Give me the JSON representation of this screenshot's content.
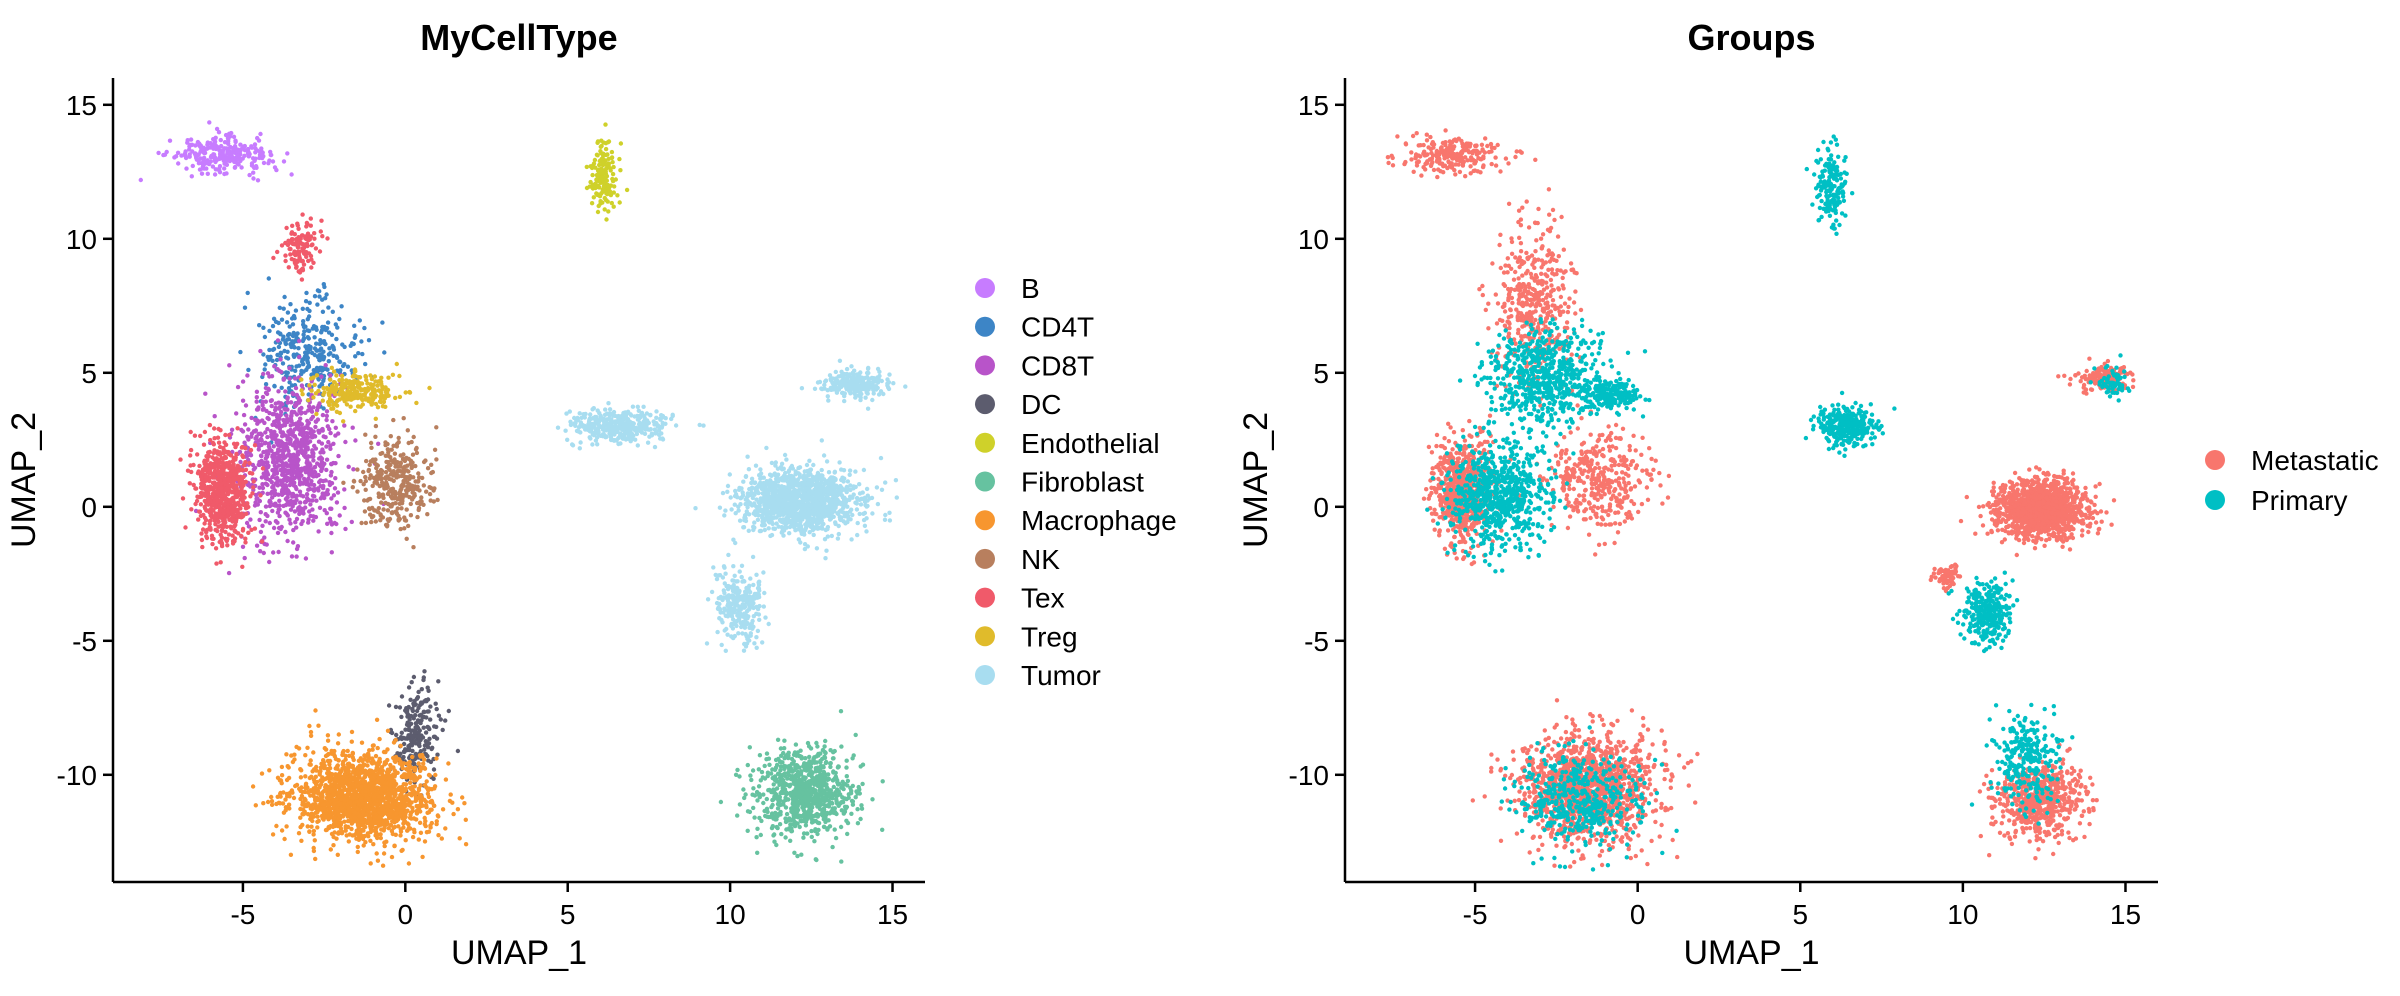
{
  "chart_data": [
    {
      "type": "scatter",
      "title": "MyCellType",
      "xlabel": "UMAP_1",
      "ylabel": "UMAP_2",
      "xlim": [
        -9,
        16
      ],
      "ylim": [
        -14,
        16
      ],
      "xticks": [
        -5,
        0,
        5,
        10,
        15
      ],
      "yticks": [
        -10,
        -5,
        0,
        5,
        10,
        15
      ],
      "xtick_labels": [
        "-5",
        "0",
        "5",
        "10",
        "15"
      ],
      "ytick_labels": [
        "-10",
        "-5",
        "0",
        "5",
        "10",
        "15"
      ],
      "grid": false,
      "legend_position": "right",
      "series": [
        {
          "name": "B",
          "color": "#C77CFF",
          "clusters": [
            {
              "cx": -5.7,
              "cy": 13.1,
              "sx": 1.0,
              "sy": 0.45,
              "n": 260
            }
          ]
        },
        {
          "name": "CD4T",
          "color": "#3D85C6",
          "clusters": [
            {
              "cx": -3.0,
              "cy": 5.8,
              "sx": 1.0,
              "sy": 1.3,
              "n": 320
            }
          ]
        },
        {
          "name": "CD8T",
          "color": "#B854C9",
          "clusters": [
            {
              "cx": -3.6,
              "cy": 1.8,
              "sx": 1.1,
              "sy": 2.0,
              "n": 900
            }
          ]
        },
        {
          "name": "DC",
          "color": "#5C5C6E",
          "clusters": [
            {
              "cx": 0.3,
              "cy": -8.6,
              "sx": 0.45,
              "sy": 1.3,
              "n": 220
            }
          ]
        },
        {
          "name": "Endothelial",
          "color": "#CFD12A",
          "clusters": [
            {
              "cx": 6.1,
              "cy": 12.4,
              "sx": 0.3,
              "sy": 0.85,
              "n": 160
            }
          ]
        },
        {
          "name": "Fibroblast",
          "color": "#66C2A0",
          "clusters": [
            {
              "cx": 12.3,
              "cy": -10.7,
              "sx": 1.0,
              "sy": 1.1,
              "n": 800
            }
          ]
        },
        {
          "name": "Macrophage",
          "color": "#F7962F",
          "clusters": [
            {
              "cx": -1.3,
              "cy": -10.8,
              "sx": 1.4,
              "sy": 1.1,
              "n": 1700
            }
          ]
        },
        {
          "name": "NK",
          "color": "#B87F5E",
          "clusters": [
            {
              "cx": -0.3,
              "cy": 0.8,
              "sx": 0.7,
              "sy": 1.2,
              "n": 320
            }
          ]
        },
        {
          "name": "Tex",
          "color": "#F05A6A",
          "clusters": [
            {
              "cx": -5.6,
              "cy": 0.6,
              "sx": 0.55,
              "sy": 1.2,
              "n": 700
            },
            {
              "cx": -3.2,
              "cy": 9.7,
              "sx": 0.35,
              "sy": 0.6,
              "n": 120
            }
          ]
        },
        {
          "name": "Treg",
          "color": "#E0BB2B",
          "clusters": [
            {
              "cx": -1.6,
              "cy": 4.3,
              "sx": 0.9,
              "sy": 0.45,
              "n": 260
            }
          ]
        },
        {
          "name": "Tumor",
          "color": "#A8DDF0",
          "clusters": [
            {
              "cx": 12.2,
              "cy": 0.2,
              "sx": 1.2,
              "sy": 0.8,
              "n": 1300
            },
            {
              "cx": 6.6,
              "cy": 3.0,
              "sx": 1.0,
              "sy": 0.4,
              "n": 380
            },
            {
              "cx": 13.8,
              "cy": 4.6,
              "sx": 0.7,
              "sy": 0.35,
              "n": 220
            },
            {
              "cx": 10.3,
              "cy": -3.7,
              "sx": 0.45,
              "sy": 0.9,
              "n": 280
            }
          ]
        }
      ]
    },
    {
      "type": "scatter",
      "title": "Groups",
      "xlabel": "UMAP_1",
      "ylabel": "UMAP_2",
      "xlim": [
        -9,
        16
      ],
      "ylim": [
        -14,
        16
      ],
      "xticks": [
        -5,
        0,
        5,
        10,
        15
      ],
      "yticks": [
        -10,
        -5,
        0,
        5,
        10,
        15
      ],
      "xtick_labels": [
        "-5",
        "0",
        "5",
        "10",
        "15"
      ],
      "ytick_labels": [
        "-10",
        "-5",
        "0",
        "5",
        "10",
        "15"
      ],
      "grid": false,
      "legend_position": "right",
      "series": [
        {
          "name": "Metastatic",
          "color": "#F8766D",
          "clusters": [
            {
              "cx": -5.7,
              "cy": 13.1,
              "sx": 1.0,
              "sy": 0.45,
              "n": 240
            },
            {
              "cx": -5.4,
              "cy": 0.6,
              "sx": 0.6,
              "sy": 1.3,
              "n": 650
            },
            {
              "cx": -3.2,
              "cy": 7.5,
              "sx": 0.8,
              "sy": 2.0,
              "n": 420
            },
            {
              "cx": -1.2,
              "cy": 1.0,
              "sx": 1.0,
              "sy": 1.2,
              "n": 360
            },
            {
              "cx": -1.5,
              "cy": -10.5,
              "sx": 1.4,
              "sy": 1.3,
              "n": 1300
            },
            {
              "cx": 12.4,
              "cy": -0.1,
              "sx": 0.9,
              "sy": 0.7,
              "n": 1300
            },
            {
              "cx": 14.3,
              "cy": 4.8,
              "sx": 0.5,
              "sy": 0.3,
              "n": 160
            },
            {
              "cx": 12.4,
              "cy": -11.0,
              "sx": 0.9,
              "sy": 0.9,
              "n": 600
            },
            {
              "cx": 9.5,
              "cy": -2.6,
              "sx": 0.25,
              "sy": 0.3,
              "n": 70
            }
          ]
        },
        {
          "name": "Primary",
          "color": "#00BFC4",
          "clusters": [
            {
              "cx": -4.2,
              "cy": 0.5,
              "sx": 1.0,
              "sy": 1.4,
              "n": 700
            },
            {
              "cx": -2.8,
              "cy": 4.8,
              "sx": 1.1,
              "sy": 1.2,
              "n": 600
            },
            {
              "cx": -0.8,
              "cy": 4.2,
              "sx": 0.6,
              "sy": 0.4,
              "n": 200
            },
            {
              "cx": 6.0,
              "cy": 12.0,
              "sx": 0.3,
              "sy": 1.1,
              "n": 170
            },
            {
              "cx": 6.4,
              "cy": 3.0,
              "sx": 0.6,
              "sy": 0.5,
              "n": 320
            },
            {
              "cx": 10.7,
              "cy": -4.0,
              "sx": 0.5,
              "sy": 0.8,
              "n": 280
            },
            {
              "cx": 12.0,
              "cy": -9.5,
              "sx": 0.7,
              "sy": 1.2,
              "n": 260
            },
            {
              "cx": -1.8,
              "cy": -11.0,
              "sx": 1.3,
              "sy": 1.2,
              "n": 450
            },
            {
              "cx": 14.6,
              "cy": 4.6,
              "sx": 0.3,
              "sy": 0.4,
              "n": 60
            }
          ]
        }
      ]
    }
  ]
}
